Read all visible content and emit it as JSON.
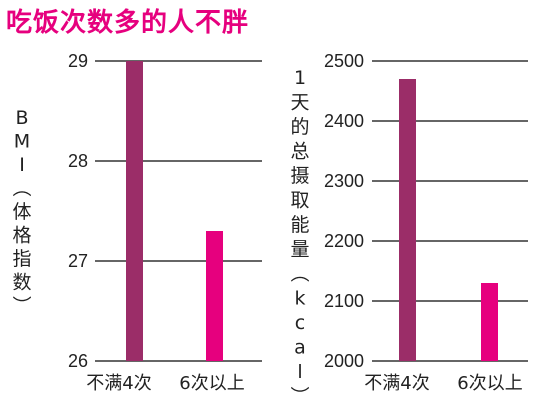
{
  "title": "吃饭次数多的人不胖",
  "chart_data": [
    {
      "type": "bar",
      "categories": [
        "不满4次",
        "6次以上"
      ],
      "values": [
        29.0,
        27.3
      ],
      "ylabel": "BMI（体格指数）",
      "ylim": [
        26,
        29
      ],
      "yticks": [
        "26",
        "27",
        "28",
        "29"
      ],
      "grid": true,
      "colors": [
        "#9b2d68",
        "#e6007e"
      ]
    },
    {
      "type": "bar",
      "categories": [
        "不满4次",
        "6次以上"
      ],
      "values": [
        2470,
        2130
      ],
      "ylabel": "1天的总摄取能量（kcal）",
      "ylim": [
        2000,
        2500
      ],
      "yticks": [
        "2000",
        "2100",
        "2200",
        "2300",
        "2400",
        "2500"
      ],
      "grid": true,
      "colors": [
        "#9b2d68",
        "#e6007e"
      ]
    }
  ]
}
